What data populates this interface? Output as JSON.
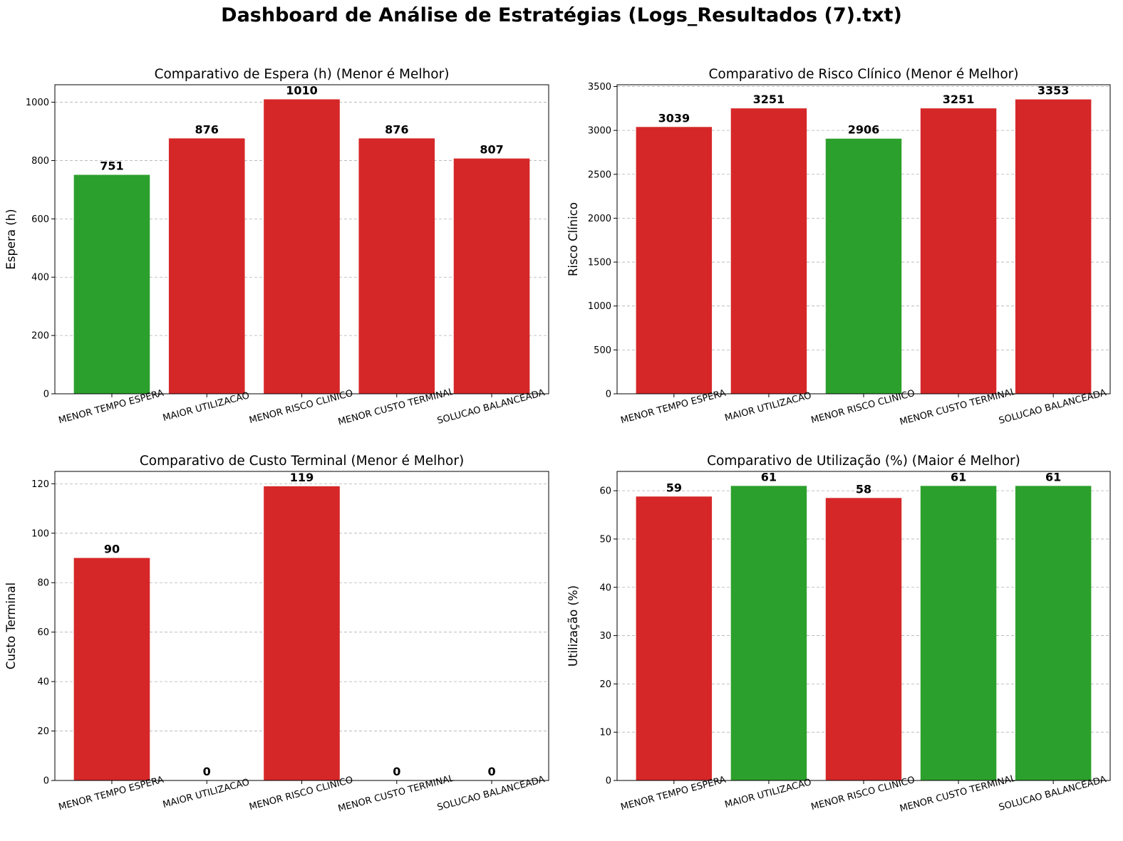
{
  "suptitle": "Dashboard de Análise de Estratégias (Logs_Resultados (7).txt)",
  "colors": {
    "good": "#2ca02c",
    "bad": "#d62728"
  },
  "chart_data": [
    {
      "type": "bar",
      "title": "Comparativo de Espera (h) (Menor é Melhor)",
      "xlabel": "",
      "ylabel": "Espera (h)",
      "categories": [
        "MENOR TEMPO ESPERA",
        "MAIOR UTILIZACAO",
        "MENOR RISCO CLINICO",
        "MENOR CUSTO TERMINAL",
        "SOLUCAO BALANCEADA"
      ],
      "values": [
        751,
        876,
        1010,
        876,
        807
      ],
      "labels": [
        "751",
        "876",
        "1010",
        "876",
        "807"
      ],
      "highlight": [
        true,
        false,
        false,
        false,
        false
      ],
      "ylim": [
        0,
        1060
      ],
      "yticks": [
        0,
        200,
        400,
        600,
        800,
        1000
      ],
      "grid": "y-dashed"
    },
    {
      "type": "bar",
      "title": "Comparativo de Risco Clínico (Menor é Melhor)",
      "xlabel": "",
      "ylabel": "Risco Clínico",
      "categories": [
        "MENOR TEMPO ESPERA",
        "MAIOR UTILIZACAO",
        "MENOR RISCO CLINICO",
        "MENOR CUSTO TERMINAL",
        "SOLUCAO BALANCEADA"
      ],
      "values": [
        3039,
        3251,
        2906,
        3251,
        3353
      ],
      "labels": [
        "3039",
        "3251",
        "2906",
        "3251",
        "3353"
      ],
      "highlight": [
        false,
        false,
        true,
        false,
        false
      ],
      "ylim": [
        0,
        3520
      ],
      "yticks": [
        0,
        500,
        1000,
        1500,
        2000,
        2500,
        3000,
        3500
      ],
      "grid": "y-dashed"
    },
    {
      "type": "bar",
      "title": "Comparativo de Custo Terminal (Menor é Melhor)",
      "xlabel": "",
      "ylabel": "Custo Terminal",
      "categories": [
        "MENOR TEMPO ESPERA",
        "MAIOR UTILIZACAO",
        "MENOR RISCO CLINICO",
        "MENOR CUSTO TERMINAL",
        "SOLUCAO BALANCEADA"
      ],
      "values": [
        90,
        0,
        119,
        0,
        0
      ],
      "labels": [
        "90",
        "0",
        "119",
        "0",
        "0"
      ],
      "highlight": [
        false,
        false,
        false,
        false,
        false
      ],
      "ylim": [
        0,
        125
      ],
      "yticks": [
        0,
        20,
        40,
        60,
        80,
        100,
        120
      ],
      "grid": "y-dashed"
    },
    {
      "type": "bar",
      "title": "Comparativo de Utilização (%) (Maior é Melhor)",
      "xlabel": "",
      "ylabel": "Utilização (%)",
      "categories": [
        "MENOR TEMPO ESPERA",
        "MAIOR UTILIZACAO",
        "MENOR RISCO CLINICO",
        "MENOR CUSTO TERMINAL",
        "SOLUCAO BALANCEADA"
      ],
      "values": [
        58.8,
        61,
        58.5,
        61,
        61
      ],
      "labels": [
        "59",
        "61",
        "58",
        "61",
        "61"
      ],
      "highlight": [
        false,
        true,
        false,
        true,
        true
      ],
      "ylim": [
        0,
        64
      ],
      "yticks": [
        0,
        10,
        20,
        30,
        40,
        50,
        60
      ],
      "grid": "y-dashed"
    }
  ]
}
